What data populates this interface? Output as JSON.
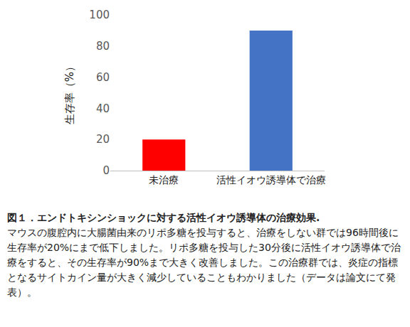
{
  "chart_data": {
    "type": "bar",
    "categories": [
      "未治療",
      "活性イオウ誘導体で治療"
    ],
    "values": [
      20,
      90
    ],
    "colors": [
      "#ff0000",
      "#4472c4"
    ],
    "y_label": "生存率（%）",
    "ylim": [
      0,
      100
    ],
    "yticks": [
      0,
      20,
      40,
      60,
      80,
      100
    ],
    "grid": false
  },
  "caption": {
    "title": "図１．エンドトキシンショックに対する活性イオウ誘導体の治療効果.",
    "text": "マウスの腹腔内に大腸菌由来のリポ多糖を投与すると、治療をしない群では96時間後に生存率が20%にまで低下しました。リポ多糖を投与した30分後に活性イオウ誘導体で治療をすると、その生存率が90%まで大きく改善しました。この治療群では、炎症の指標となるサイトカイン量が大きく減少していることもわかりました（データは論文にて発表）。"
  }
}
